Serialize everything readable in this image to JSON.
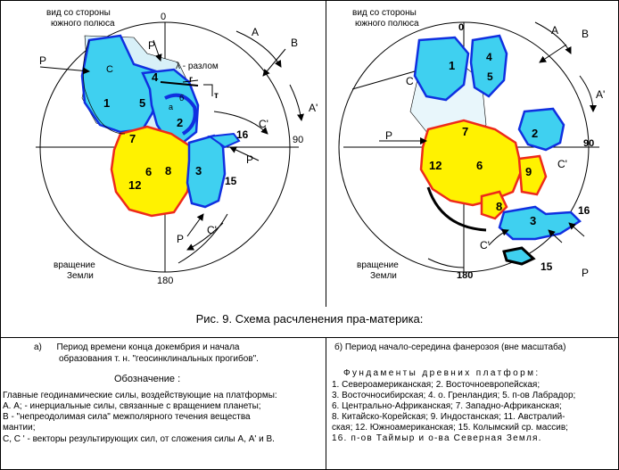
{
  "left": {
    "view_label_1": "вид со стороны",
    "view_label_2": "южного полюса",
    "deg_top": "0",
    "deg_right": "90",
    "deg_bottom": "180",
    "rotation_1": "вращение",
    "rotation_2": "Земли",
    "lambda": "λ - разлом",
    "letter_g": "г",
    "letter_t": "т",
    "labels": {
      "A": "A",
      "B": "B",
      "A1": "A'",
      "P": "P",
      "C": "C",
      "C1": "C'"
    },
    "numbers": [
      "1",
      "2",
      "3",
      "4",
      "5",
      "6",
      "7",
      "8",
      "12",
      "15",
      "16"
    ],
    "letter_a": "а",
    "letter_b": "б"
  },
  "right": {
    "view_label_1": "вид со стороны",
    "view_label_2": "южного полюса",
    "deg_top": "0",
    "deg_right": "90",
    "deg_bottom": "180",
    "rotation_1": "вращение",
    "rotation_2": "Земли",
    "labels": {
      "A": "A",
      "B": "B",
      "A1": "A'",
      "P": "P",
      "C": "C",
      "C1": "C'"
    },
    "numbers": [
      "1",
      "2",
      "3",
      "4",
      "5",
      "6",
      "7",
      "8",
      "9",
      "12",
      "15",
      "16"
    ]
  },
  "caption": "Рис. 9. Схема расчленения пра-материка:",
  "sub_a_1": "а)      Период времени конца докембрия и начала",
  "sub_a_2": "образования т. н. \"геосинклинальных прогибов\".",
  "sub_b": "б) Период начало-середина фанерозоя (вне масштаба)",
  "legend_title": "Обозначение :",
  "legend_lines": [
    "Главные геодинамические силы, воздействующие на платформы:",
    "А. А; - инерциальные силы, связанные с вращением планеты;",
    "В - \"непреодолимая сила\" межполярного течения вещества",
    "мантии;",
    "С, С ' - векторы результирующих сил, от сложения силы А, А' и  В."
  ],
  "platforms_title": "Фундаменты древних платформ:",
  "platforms_lines": [
    "1. Североамериканская; 2. Восточноевропейская;",
    "3. Восточносибирская; 4. о. Гренландия; 5. п-ов Лабрадор;",
    "6. Центрально-Африканская;  7. Западно-Африканская;",
    "8. Китайско-Корейская;  9. Индостанская; 11. Австралий-",
    "ская; 12. Южноамериканская; 15. Колымский ср. массив;",
    "16. п-ов Таймыр и о-ва  Северная Земля."
  ],
  "colors": {
    "cyan": "#3fd0f0",
    "blue": "#1030e0",
    "yellow": "#fff200",
    "red": "#ee2a1a",
    "lightcyan": "#bfeaf7"
  }
}
